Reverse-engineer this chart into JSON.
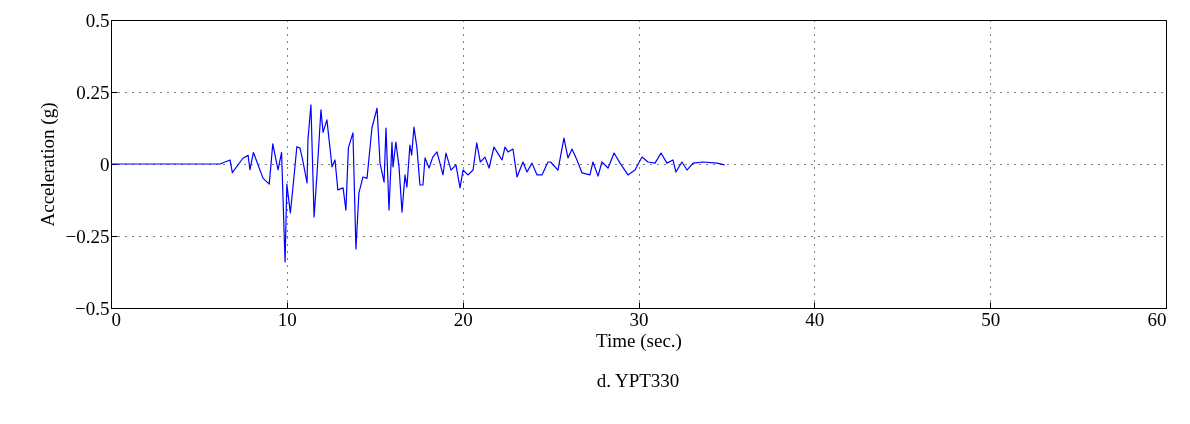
{
  "chart_data": {
    "type": "line",
    "xlabel": "Time (sec.)",
    "ylabel": "Acceleration (g)",
    "annotations": [
      "d. YPT330"
    ],
    "xlim": [
      0,
      60
    ],
    "xticks": [
      0,
      10,
      20,
      30,
      40,
      50,
      60
    ],
    "ylim": [
      -0.5,
      0.5
    ],
    "yticks": [
      {
        "value": -0.5,
        "label": "−0.5"
      },
      {
        "value": -0.25,
        "label": "−0.25"
      },
      0,
      0.25,
      0.5
    ],
    "grid": true,
    "line_style": "solid",
    "x": [
      0,
      5.5,
      6.2,
      6.77,
      6.9,
      7.5,
      7.8,
      7.9,
      8.1,
      8.65,
      9.0,
      9.2,
      9.5,
      9.7,
      9.9,
      10.0,
      10.2,
      10.35,
      10.57,
      10.75,
      10.9,
      11.15,
      11.2,
      11.37,
      11.55,
      11.7,
      11.94,
      12.06,
      12.28,
      12.57,
      12.74,
      12.9,
      13.2,
      13.36,
      13.5,
      13.76,
      13.93,
      14.1,
      14.33,
      14.56,
      14.84,
      15.13,
      15.3,
      15.53,
      15.64,
      15.81,
      15.98,
      16.04,
      16.2,
      16.38,
      16.55,
      16.72,
      16.83,
      17.0,
      17.1,
      17.23,
      17.4,
      17.57,
      17.74,
      17.86,
      18.09,
      18.3,
      18.54,
      18.88,
      19.05,
      19.34,
      19.62,
      19.85,
      20.02,
      20.3,
      20.59,
      20.8,
      21.0,
      21.27,
      21.5,
      21.78,
      21.95,
      22.24,
      22.41,
      22.58,
      22.86,
      23.09,
      23.43,
      23.66,
      23.94,
      24.23,
      24.51,
      24.85,
      25.0,
      25.42,
      25.76,
      25.99,
      26.22,
      26.5,
      26.79,
      27.24,
      27.41,
      27.7,
      27.92,
      28.27,
      28.61,
      28.95,
      29.4,
      29.8,
      30.2,
      30.54,
      30.94,
      31.28,
      31.62,
      31.96,
      32.13,
      32.47,
      32.76,
      33.1,
      33.67,
      34.46,
      34.9
    ],
    "series": [
      {
        "color": "#0000ff",
        "values": [
          0,
          0,
          0,
          0.014,
          -0.03,
          0.02,
          0.03,
          -0.02,
          0.04,
          -0.05,
          -0.07,
          0.07,
          -0.02,
          0.04,
          -0.34,
          -0.07,
          -0.17,
          -0.08,
          0.06,
          0.055,
          0.014,
          -0.066,
          0.083,
          0.205,
          -0.184,
          -0.05,
          0.188,
          0.11,
          0.153,
          -0.01,
          0.014,
          -0.09,
          -0.083,
          -0.16,
          0.056,
          0.108,
          -0.295,
          -0.1,
          -0.045,
          -0.05,
          0.125,
          0.194,
          0.003,
          -0.063,
          0.125,
          -0.16,
          0.076,
          -0.01,
          0.076,
          -0.01,
          -0.167,
          -0.038,
          -0.08,
          0.066,
          0.031,
          0.128,
          0.056,
          -0.073,
          -0.073,
          0.021,
          -0.014,
          0.024,
          0.042,
          -0.038,
          0.038,
          -0.021,
          -0.003,
          -0.083,
          -0.021,
          -0.038,
          -0.021,
          0.073,
          0.007,
          0.024,
          -0.014,
          0.059,
          0.042,
          0.014,
          0.059,
          0.042,
          0.052,
          -0.045,
          0.007,
          -0.028,
          0.003,
          -0.038,
          -0.038,
          0.007,
          0.007,
          -0.021,
          0.09,
          0.021,
          0.052,
          0.014,
          -0.031,
          -0.038,
          0.007,
          -0.042,
          0.007,
          -0.014,
          0.038,
          0.003,
          -0.038,
          -0.021,
          0.024,
          0.007,
          0.003,
          0.038,
          0.003,
          0.014,
          -0.028,
          0.007,
          -0.021,
          0.003,
          0.007,
          0.003,
          -0.003
        ]
      }
    ]
  }
}
